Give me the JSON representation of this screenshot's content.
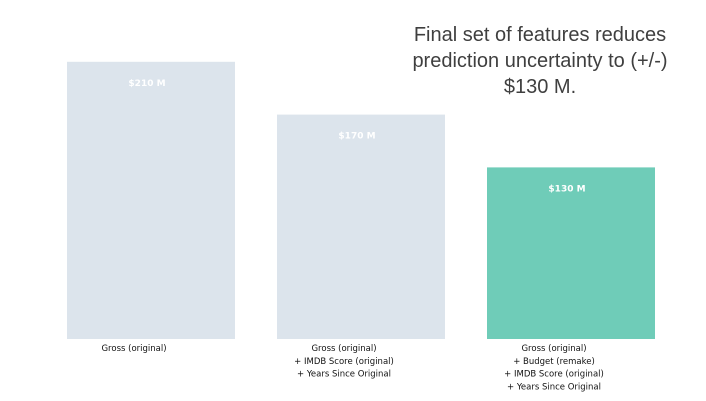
{
  "chart_data": {
    "type": "bar",
    "title_lines": [
      "Final set of features reduces",
      "prediction uncertainty to (+/-)",
      "$130 M."
    ],
    "categories": [
      [
        "Gross (original)"
      ],
      [
        "Gross (original)",
        "+ IMDB Score (original)",
        "+ Years Since Original"
      ],
      [
        "Gross (original)",
        "+  Budget (remake)",
        "+ IMDB Score (original)",
        "+ Years Since Original"
      ]
    ],
    "values": [
      210,
      170,
      130
    ],
    "value_labels": [
      "$210 M",
      "$170 M",
      "$130 M"
    ],
    "ylim": [
      0,
      250
    ],
    "grid": false,
    "colors": {
      "default": "#dce4ec",
      "highlight": "#6fccb8"
    },
    "highlight_index": 2
  }
}
